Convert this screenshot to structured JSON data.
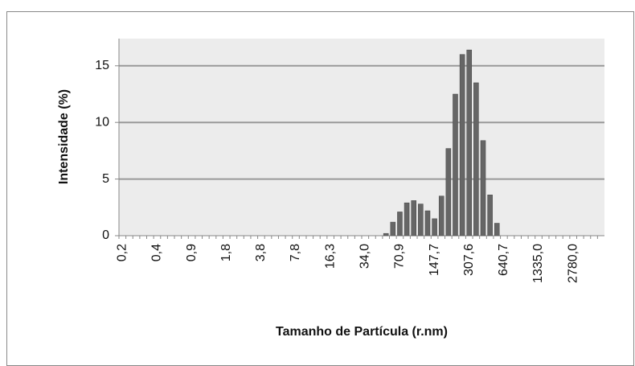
{
  "chart_data": {
    "type": "bar",
    "y_label": "Intensidade (%)",
    "x_label": "Tamanho de Partícula (r.nm)",
    "categories": [
      "0,2",
      null,
      null,
      null,
      null,
      "0,4",
      null,
      null,
      null,
      null,
      "0,9",
      null,
      null,
      null,
      null,
      "1,8",
      null,
      null,
      null,
      null,
      "3,8",
      null,
      null,
      null,
      null,
      "7,8",
      null,
      null,
      null,
      null,
      "16,3",
      null,
      null,
      null,
      null,
      "34,0",
      null,
      null,
      null,
      null,
      "70,9",
      null,
      null,
      null,
      null,
      "147,7",
      null,
      null,
      null,
      null,
      "307,6",
      null,
      null,
      null,
      null,
      "640,7",
      null,
      null,
      null,
      null,
      "1335,0",
      null,
      null,
      null,
      null,
      "2780,0",
      null,
      null,
      null,
      null
    ],
    "values": [
      0,
      0,
      0,
      0,
      0,
      0,
      0,
      0,
      0,
      0,
      0,
      0,
      0,
      0,
      0,
      0,
      0,
      0,
      0,
      0,
      0,
      0,
      0,
      0,
      0,
      0,
      0,
      0,
      0,
      0,
      0,
      0,
      0,
      0,
      0,
      0,
      0,
      0,
      0.2,
      1.2,
      2.1,
      2.9,
      3.1,
      2.8,
      2.2,
      1.5,
      3.5,
      7.7,
      12.5,
      16,
      16.4,
      13.5,
      8.4,
      3.6,
      1.1,
      0,
      0,
      0,
      0,
      0,
      0,
      0,
      0,
      0,
      0,
      0,
      0,
      0,
      0,
      0
    ],
    "color": "#666666",
    "ylim": [
      0,
      17.4
    ],
    "yticks": [
      0,
      5,
      10,
      15
    ],
    "grid": true
  }
}
